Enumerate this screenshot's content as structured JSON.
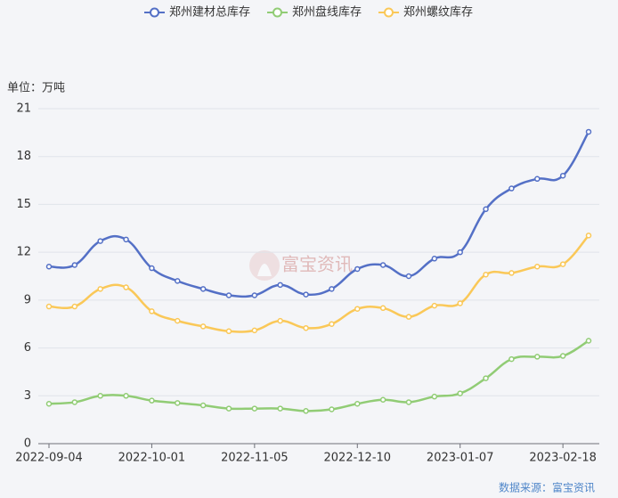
{
  "chart_data": {
    "type": "line",
    "unit_label": "单位：万吨",
    "source": "数据来源：富宝资讯",
    "watermark": "富宝资讯",
    "categories": [
      "2022-09-04",
      null,
      null,
      null,
      "2022-10-01",
      null,
      null,
      null,
      "2022-11-05",
      null,
      null,
      null,
      "2022-12-10",
      null,
      null,
      null,
      "2023-01-07",
      null,
      null,
      null,
      "2023-02-18",
      null
    ],
    "series": [
      {
        "name": "郑州建材总库存",
        "color": "#5470c6",
        "values": [
          11.1,
          11.2,
          12.7,
          12.8,
          11.0,
          10.2,
          9.7,
          9.3,
          9.3,
          9.95,
          9.35,
          9.7,
          10.95,
          11.2,
          10.5,
          11.6,
          12.0,
          14.7,
          16.0,
          16.6,
          16.8,
          19.55
        ]
      },
      {
        "name": "郑州盘线库存",
        "color": "#91cc75",
        "values": [
          2.5,
          2.6,
          3.0,
          3.0,
          2.7,
          2.55,
          2.4,
          2.2,
          2.2,
          2.2,
          2.05,
          2.15,
          2.5,
          2.75,
          2.6,
          2.95,
          3.15,
          4.1,
          5.3,
          5.45,
          5.5,
          6.45
        ]
      },
      {
        "name": "郑州螺纹库存",
        "color": "#fac858",
        "values": [
          8.6,
          8.6,
          9.7,
          9.8,
          8.3,
          7.7,
          7.35,
          7.05,
          7.1,
          7.7,
          7.25,
          7.5,
          8.45,
          8.5,
          7.95,
          8.65,
          8.8,
          10.6,
          10.7,
          11.1,
          11.25,
          13.05
        ]
      }
    ],
    "ylim": [
      0,
      21
    ],
    "yticks": [
      0,
      3,
      6,
      9,
      12,
      15,
      18,
      21
    ],
    "grid": true,
    "legend": "top"
  }
}
